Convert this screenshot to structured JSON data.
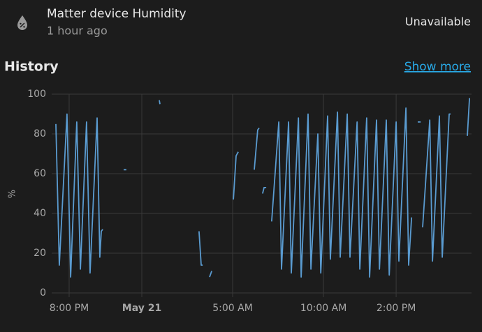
{
  "header": {
    "title": "Matter device Humidity",
    "subtitle": "1 hour ago",
    "state": "Unavailable"
  },
  "section": {
    "title": "History",
    "link": "Show more"
  },
  "chart_data": {
    "type": "line",
    "y_label": "%",
    "color": "#5a9bd0",
    "grid": true,
    "xlim": [
      19.27,
      42.15
    ],
    "xticks": [
      {
        "value": 20,
        "label": "8:00 PM"
      },
      {
        "value": 24,
        "label": "May 21"
      },
      {
        "value": 29,
        "label": "5:00 AM"
      },
      {
        "value": 34,
        "label": "10:00 AM"
      },
      {
        "value": 38,
        "label": "2:00 PM"
      }
    ],
    "ylim": [
      0,
      100
    ],
    "yticks": [
      0,
      20,
      40,
      60,
      80,
      100
    ],
    "x": [
      19.27,
      19.46,
      19.88,
      20.08,
      20.42,
      20.62,
      20.96,
      21.15,
      21.54,
      21.69,
      21.77,
      21.85,
      null,
      23.0,
      23.15,
      null,
      24.96,
      25.0,
      null,
      27.15,
      27.27,
      27.35,
      null,
      27.73,
      27.85,
      null,
      29.04,
      29.19,
      29.31,
      null,
      30.19,
      30.38,
      30.46,
      null,
      30.65,
      30.73,
      30.85,
      null,
      31.15,
      31.54,
      31.69,
      32.08,
      32.23,
      32.62,
      32.77,
      33.15,
      33.31,
      33.69,
      33.85,
      34.23,
      34.38,
      34.77,
      34.92,
      35.31,
      35.46,
      35.85,
      36.0,
      36.38,
      36.54,
      36.92,
      37.08,
      37.46,
      37.62,
      38.0,
      38.15,
      38.54,
      38.69,
      38.85,
      null,
      39.19,
      39.35,
      null,
      39.46,
      39.85,
      40.0,
      40.38,
      40.54,
      40.92,
      41.0,
      null,
      41.92,
      42.04
    ],
    "values": [
      85,
      14,
      90,
      8,
      86,
      12,
      86,
      10,
      88,
      18,
      31,
      32,
      null,
      62,
      62,
      null,
      97,
      95,
      null,
      31,
      14,
      14,
      null,
      8,
      11,
      null,
      47,
      69,
      71,
      null,
      62,
      82,
      83,
      null,
      50,
      53,
      53,
      null,
      36,
      86,
      12,
      86,
      10,
      88,
      8,
      90,
      12,
      80,
      10,
      89,
      17,
      91,
      18,
      90,
      18,
      86,
      12,
      88,
      8,
      87,
      12,
      87,
      9,
      86,
      16,
      93,
      14,
      38,
      null,
      86,
      86,
      null,
      33,
      87,
      16,
      89,
      18,
      90,
      90,
      null,
      79,
      98
    ]
  }
}
